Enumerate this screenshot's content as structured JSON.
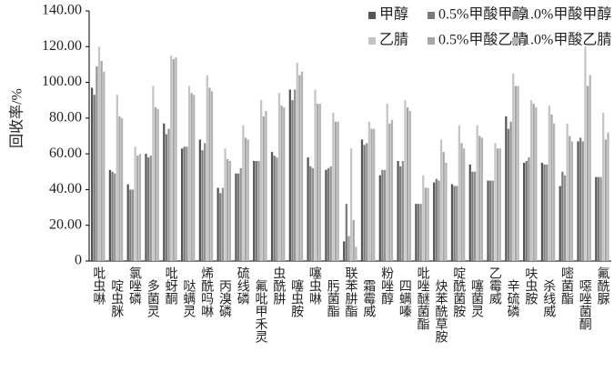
{
  "chart_data": {
    "type": "bar",
    "y_label": "回收率/%",
    "categories": [
      "吡虫啉",
      "啶虫脒",
      "氯唑磷",
      "多菌灵",
      "吡蚜酮",
      "哒螨灵",
      "烯酰吗啉",
      "丙溴磷",
      "硫线磷",
      "氟吡甲禾灵",
      "虫酰肼",
      "噻虫胺",
      "噻虫啉",
      "肟菌酯",
      "联苯肼酯",
      "霜霉威",
      "粉唑醇",
      "四螨嗪",
      "吡唑醚菌酯",
      "炔苯酰草胺",
      "啶酰菌胺",
      "噻菌灵",
      "乙霉威",
      "辛硫磷",
      "呋虫胺",
      "杀线威",
      "嘧菌酯",
      "噁唑菌酮",
      "氟酰脲"
    ],
    "series": [
      {
        "name": "甲醇",
        "color": "#555555",
        "values": [
          97,
          51,
          43,
          60,
          77,
          63,
          68,
          41,
          49,
          56,
          61,
          96,
          58,
          51,
          11,
          68,
          48,
          56,
          32,
          44,
          43,
          54,
          45,
          81,
          55,
          55,
          42,
          67,
          47
        ]
      },
      {
        "name": "0.5%甲酸甲醇",
        "color": "#7a7a7a",
        "values": [
          93,
          50,
          40,
          58,
          71,
          64,
          62,
          38,
          49,
          56,
          59,
          90,
          53,
          52,
          32,
          65,
          51,
          53,
          32,
          46,
          42,
          50,
          45,
          74,
          56,
          54,
          50,
          69,
          47
        ]
      },
      {
        "name": "1.0%甲酸甲醇",
        "color": "#939393",
        "values": [
          109,
          49,
          40,
          59,
          74,
          64,
          66,
          41,
          52,
          56,
          58,
          96,
          52,
          53,
          14,
          66,
          51,
          56,
          32,
          45,
          42,
          50,
          45,
          78,
          58,
          54,
          48,
          67,
          47
        ]
      },
      {
        "name": "乙腈",
        "color": "#c4c4c4",
        "values": [
          120,
          93,
          64,
          98,
          115,
          98,
          104,
          63,
          76,
          90,
          94,
          111,
          96,
          83,
          63,
          78,
          88,
          90,
          48,
          68,
          76,
          76,
          66,
          105,
          90,
          87,
          77,
          120,
          83
        ]
      },
      {
        "name": "0.5%甲酸乙腈",
        "color": "#a6a6a6",
        "values": [
          112,
          81,
          59,
          86,
          113,
          94,
          97,
          57,
          69,
          81,
          87,
          104,
          88,
          78,
          23,
          74,
          77,
          86,
          41,
          61,
          66,
          70,
          63,
          98,
          88,
          82,
          70,
          98,
          68
        ]
      },
      {
        "name": "1.0%甲酸乙腈",
        "color": "#b3b3b3",
        "values": [
          106,
          80,
          60,
          85,
          114,
          93,
          95,
          56,
          68,
          84,
          86,
          106,
          88,
          78,
          8,
          74,
          79,
          84,
          41,
          55,
          63,
          69,
          63,
          98,
          86,
          77,
          67,
          104,
          72
        ]
      }
    ],
    "ylim": [
      0,
      140
    ],
    "yticks": [
      0,
      {
        "value": 20,
        "label": "20.00"
      },
      {
        "value": 40,
        "label": "40.00"
      },
      {
        "value": 60,
        "label": "60.00"
      },
      {
        "value": 80,
        "label": "80.00"
      },
      {
        "value": 100,
        "label": "100.00"
      },
      {
        "value": 120,
        "label": "120.00"
      },
      {
        "value": 140,
        "label": "140.00"
      }
    ]
  }
}
